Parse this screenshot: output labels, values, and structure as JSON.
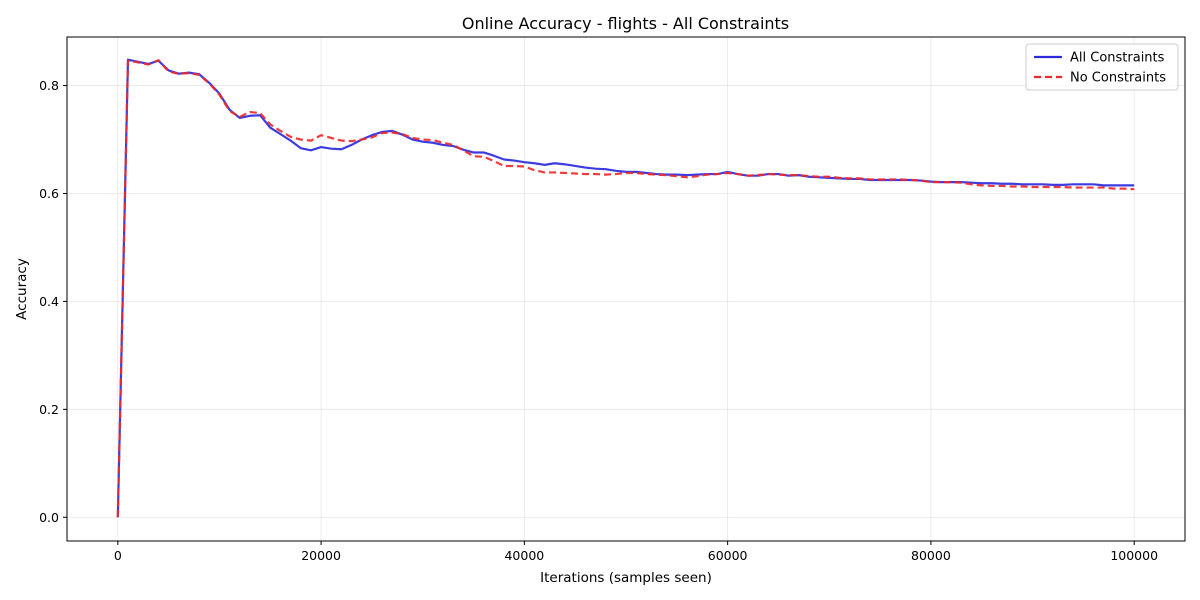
{
  "chart_data": {
    "type": "line",
    "title": "Online Accuracy - flights - All Constraints",
    "xlabel": "Iterations (samples seen)",
    "ylabel": "Accuracy",
    "xlim": [
      -5000,
      105000
    ],
    "ylim": [
      -0.044,
      0.89
    ],
    "xticks": [
      0,
      20000,
      40000,
      60000,
      80000,
      100000
    ],
    "xtick_labels": [
      "0",
      "20000",
      "40000",
      "60000",
      "80000",
      "100000"
    ],
    "yticks": [
      0.0,
      0.2,
      0.4,
      0.6,
      0.8
    ],
    "ytick_labels": [
      "0.0",
      "0.2",
      "0.4",
      "0.6",
      "0.8"
    ],
    "grid": true,
    "legend_position": "top-right",
    "series": [
      {
        "name": "All Constraints",
        "color": "#2b2bdd",
        "style": "solid",
        "x": [
          0,
          1000,
          2000,
          3000,
          4000,
          5000,
          6000,
          7000,
          8000,
          9000,
          10000,
          11000,
          12000,
          13000,
          14000,
          15000,
          16000,
          17000,
          18000,
          19000,
          20000,
          21000,
          22000,
          23000,
          24000,
          25000,
          26000,
          27000,
          28000,
          29000,
          30000,
          31000,
          32000,
          33000,
          34000,
          35000,
          36000,
          37000,
          38000,
          39000,
          40000,
          41000,
          42000,
          43000,
          44000,
          45000,
          46000,
          47000,
          48000,
          49000,
          50000,
          51000,
          52000,
          53000,
          54000,
          55000,
          56000,
          57000,
          58000,
          59000,
          60000,
          61000,
          62000,
          63000,
          64000,
          65000,
          66000,
          67000,
          68000,
          69000,
          70000,
          71000,
          72000,
          73000,
          74000,
          75000,
          76000,
          77000,
          78000,
          79000,
          80000,
          81000,
          82000,
          83000,
          84000,
          85000,
          86000,
          87000,
          88000,
          89000,
          90000,
          91000,
          92000,
          93000,
          94000,
          95000,
          96000,
          97000,
          98000,
          99000,
          100000
        ],
        "y": [
          0.0,
          0.848,
          0.844,
          0.84,
          0.846,
          0.828,
          0.822,
          0.824,
          0.821,
          0.805,
          0.785,
          0.755,
          0.74,
          0.744,
          0.745,
          0.722,
          0.71,
          0.698,
          0.684,
          0.68,
          0.686,
          0.683,
          0.682,
          0.69,
          0.7,
          0.708,
          0.714,
          0.716,
          0.709,
          0.7,
          0.696,
          0.694,
          0.69,
          0.688,
          0.681,
          0.676,
          0.676,
          0.67,
          0.663,
          0.661,
          0.658,
          0.656,
          0.653,
          0.656,
          0.654,
          0.651,
          0.648,
          0.646,
          0.645,
          0.642,
          0.64,
          0.64,
          0.638,
          0.636,
          0.635,
          0.635,
          0.634,
          0.635,
          0.636,
          0.636,
          0.64,
          0.636,
          0.633,
          0.633,
          0.636,
          0.636,
          0.633,
          0.634,
          0.631,
          0.63,
          0.629,
          0.628,
          0.627,
          0.627,
          0.625,
          0.625,
          0.625,
          0.625,
          0.625,
          0.624,
          0.622,
          0.621,
          0.621,
          0.621,
          0.62,
          0.619,
          0.619,
          0.618,
          0.618,
          0.617,
          0.617,
          0.617,
          0.616,
          0.616,
          0.617,
          0.617,
          0.617,
          0.615,
          0.615,
          0.615,
          0.615
        ]
      },
      {
        "name": "No Constraints",
        "color": "#ee2a2a",
        "style": "dashed",
        "x": [
          0,
          1000,
          2000,
          3000,
          4000,
          5000,
          6000,
          7000,
          8000,
          9000,
          10000,
          11000,
          12000,
          13000,
          14000,
          15000,
          16000,
          17000,
          18000,
          19000,
          20000,
          21000,
          22000,
          23000,
          24000,
          25000,
          26000,
          27000,
          28000,
          29000,
          30000,
          31000,
          32000,
          33000,
          34000,
          35000,
          36000,
          37000,
          38000,
          39000,
          40000,
          41000,
          42000,
          43000,
          44000,
          45000,
          46000,
          47000,
          48000,
          49000,
          50000,
          51000,
          52000,
          53000,
          54000,
          55000,
          56000,
          57000,
          58000,
          59000,
          60000,
          61000,
          62000,
          63000,
          64000,
          65000,
          66000,
          67000,
          68000,
          69000,
          70000,
          71000,
          72000,
          73000,
          74000,
          75000,
          76000,
          77000,
          78000,
          79000,
          80000,
          81000,
          82000,
          83000,
          84000,
          85000,
          86000,
          87000,
          88000,
          89000,
          90000,
          91000,
          92000,
          93000,
          94000,
          95000,
          96000,
          97000,
          98000,
          99000,
          100000
        ],
        "y": [
          0.0,
          0.846,
          0.843,
          0.839,
          0.847,
          0.826,
          0.822,
          0.823,
          0.82,
          0.804,
          0.783,
          0.753,
          0.742,
          0.751,
          0.749,
          0.728,
          0.716,
          0.705,
          0.7,
          0.698,
          0.708,
          0.703,
          0.698,
          0.697,
          0.7,
          0.704,
          0.712,
          0.713,
          0.71,
          0.703,
          0.7,
          0.699,
          0.694,
          0.69,
          0.68,
          0.669,
          0.668,
          0.66,
          0.651,
          0.651,
          0.65,
          0.643,
          0.639,
          0.639,
          0.638,
          0.637,
          0.636,
          0.636,
          0.635,
          0.636,
          0.638,
          0.638,
          0.636,
          0.635,
          0.634,
          0.632,
          0.63,
          0.632,
          0.635,
          0.636,
          0.638,
          0.636,
          0.633,
          0.634,
          0.636,
          0.635,
          0.634,
          0.634,
          0.632,
          0.631,
          0.631,
          0.629,
          0.628,
          0.628,
          0.626,
          0.626,
          0.626,
          0.626,
          0.625,
          0.624,
          0.621,
          0.621,
          0.621,
          0.62,
          0.617,
          0.615,
          0.614,
          0.614,
          0.613,
          0.613,
          0.612,
          0.612,
          0.612,
          0.612,
          0.611,
          0.611,
          0.611,
          0.611,
          0.609,
          0.609,
          0.608
        ]
      }
    ]
  }
}
